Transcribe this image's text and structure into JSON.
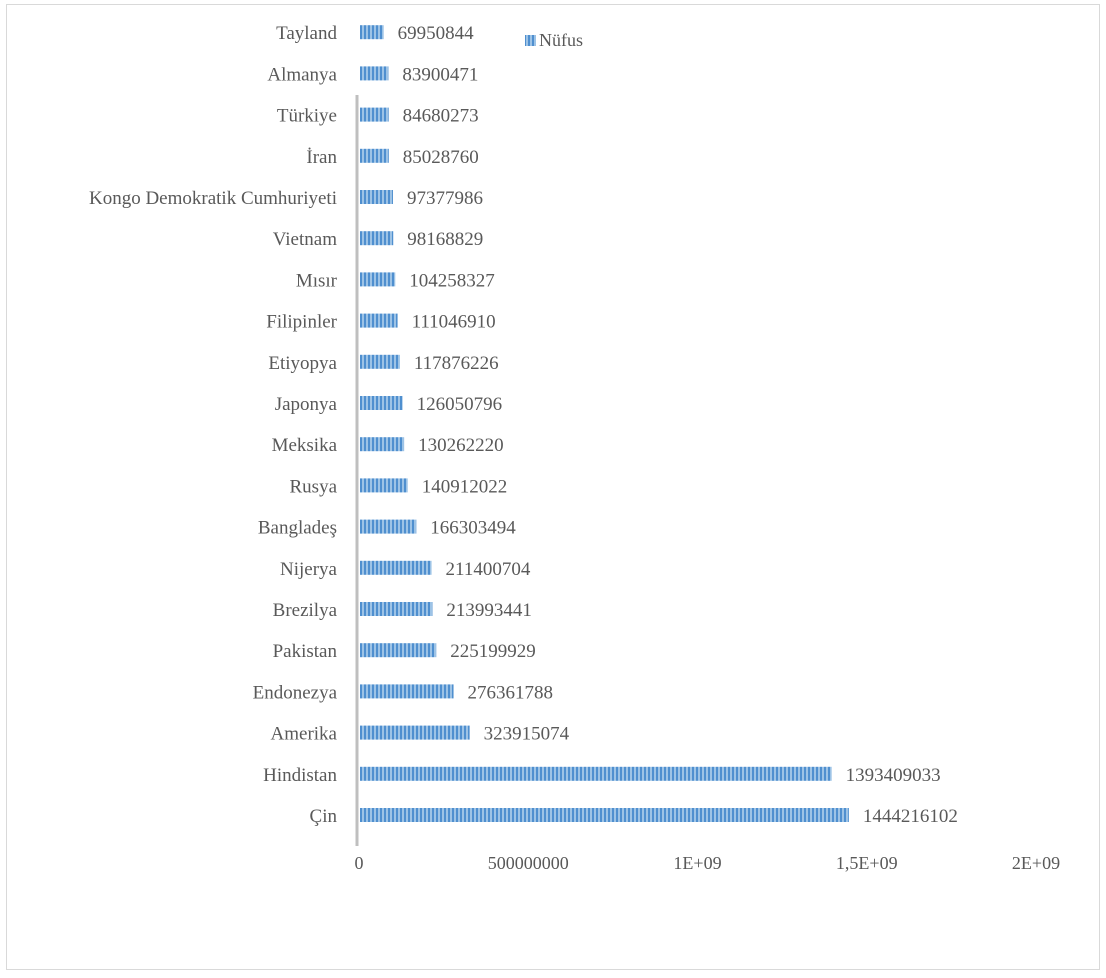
{
  "chart_data": {
    "type": "bar",
    "orientation": "horizontal",
    "categories": [
      "Çin",
      "Hindistan",
      "Amerika",
      "Endonezya",
      "Pakistan",
      "Brezilya",
      "Nijerya",
      "Bangladeş",
      "Rusya",
      "Meksika",
      "Japonya",
      "Etiyopya",
      "Filipinler",
      "Mısır",
      "Vietnam",
      "Kongo Demokratik Cumhuriyeti",
      "İran",
      "Türkiye",
      "Almanya",
      "Tayland"
    ],
    "series": [
      {
        "name": "Nüfus",
        "color": "#5b9bd5",
        "values": [
          1444216102,
          1393409033,
          323915074,
          276361788,
          225199929,
          213993441,
          211400704,
          166303494,
          140912022,
          130262220,
          126050796,
          117876226,
          111046910,
          104258327,
          98168829,
          97377986,
          85028760,
          84680273,
          83900471,
          69950844
        ]
      }
    ],
    "value_labels": [
      "1444216102",
      "1393409033",
      "323915074",
      "276361788",
      "225199929",
      "213993441",
      "211400704",
      "166303494",
      "140912022",
      "130262220",
      "126050796",
      "117876226",
      "111046910",
      "104258327",
      "98168829",
      "97377986",
      "85028760",
      "84680273",
      "83900471",
      "69950844"
    ],
    "xlim": [
      0,
      2000000000
    ],
    "x_ticks": [
      0,
      500000000,
      1000000000,
      1500000000,
      2000000000
    ],
    "x_tick_labels": [
      "0",
      "500000000",
      "1E+09",
      "1,5E+09",
      "2E+09"
    ],
    "legend": {
      "position": "top",
      "label": "Nüfus"
    },
    "grid": false
  }
}
